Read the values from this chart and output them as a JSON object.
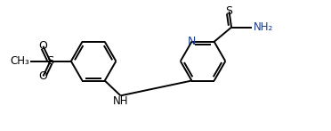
{
  "bg_color": "#ffffff",
  "bond_color": "#000000",
  "bond_lw": 1.4,
  "text_color": "#000000",
  "nh2_color": "#1a3a8a",
  "n_color": "#1a3a8a",
  "figsize": [
    3.72,
    1.47
  ],
  "dpi": 100,
  "xlim": [
    0,
    11.0
  ],
  "ylim": [
    -0.3,
    4.2
  ]
}
